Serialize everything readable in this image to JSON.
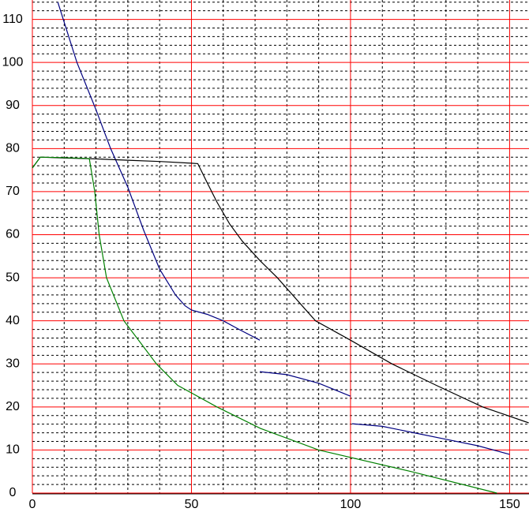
{
  "chart_data": {
    "type": "line",
    "xlim": [
      0,
      156.1
    ],
    "ylim": [
      0,
      114.5
    ],
    "xticks": [
      0,
      50,
      100,
      150
    ],
    "yticks": [
      0,
      10,
      20,
      30,
      40,
      50,
      60,
      70,
      80,
      90,
      100,
      110
    ],
    "grid": true,
    "grid_color": "#ff0000",
    "minor_grid_step": [
      10,
      2
    ],
    "series": [
      {
        "color": "#000080",
        "x": [
          8,
          14,
          20,
          24.6,
          30,
          35,
          40,
          45,
          48,
          50,
          55,
          60,
          65,
          71.5,
          null,
          71.5,
          80,
          90,
          100,
          null,
          100.5,
          110,
          120,
          130,
          140,
          150
        ],
        "values": [
          114,
          100,
          89,
          80,
          71,
          61,
          52,
          46,
          43.5,
          42.5,
          41.5,
          40,
          38,
          35.5,
          null,
          28.2,
          27.5,
          25.5,
          22.5,
          null,
          16.1,
          15.5,
          14,
          12.5,
          11,
          9
        ]
      },
      {
        "color": "#000000",
        "x": [
          0,
          2.5,
          10,
          20,
          30,
          40,
          50,
          52,
          55,
          58,
          62,
          66,
          71.5,
          77,
          89,
          100,
          113,
          127,
          141.5,
          156
        ],
        "values": [
          75.5,
          78,
          77.8,
          77.6,
          77.3,
          77,
          76.6,
          76.5,
          72,
          67.6,
          62.5,
          58.5,
          54,
          50,
          40,
          35.5,
          30,
          25,
          20,
          16.3
        ]
      },
      {
        "color": "#008000",
        "x": [
          0,
          2.5,
          10,
          17.9,
          19.6,
          21,
          23.3,
          28.8,
          39,
          45.7,
          58,
          71.7,
          90,
          119,
          146
        ],
        "values": [
          75.5,
          78,
          77.9,
          77.7,
          70,
          60,
          50,
          40,
          30,
          25,
          20,
          15,
          10,
          5,
          0
        ]
      }
    ]
  }
}
